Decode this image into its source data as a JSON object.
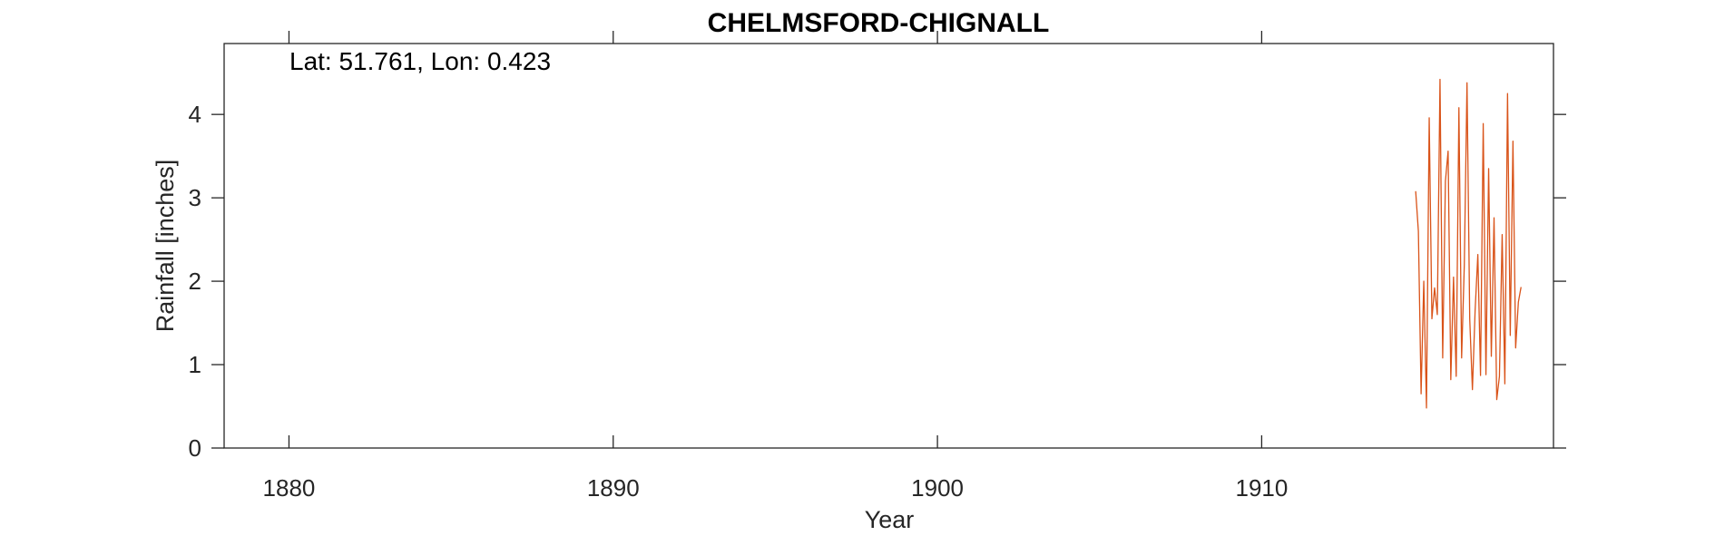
{
  "chart_data": {
    "type": "line",
    "title": "CHELMSFORD-CHIGNALL",
    "xlabel": "Year",
    "ylabel": "Rainfall [inches]",
    "annotation": "Lat: 51.761, Lon: 0.423",
    "xlim": [
      1878,
      1919
    ],
    "ylim": [
      0,
      4.85
    ],
    "x_ticks": [
      1880,
      1890,
      1900,
      1910
    ],
    "y_ticks": [
      0,
      1,
      2,
      3,
      4
    ],
    "grid": false,
    "line_color": "#D95319",
    "series": [
      {
        "x": [
          1914.75,
          1914.833,
          1914.917,
          1915.0,
          1915.083,
          1915.167,
          1915.25,
          1915.333,
          1915.417,
          1915.5,
          1915.583,
          1915.667,
          1915.75,
          1915.833,
          1915.917,
          1916.0,
          1916.083,
          1916.167,
          1916.25,
          1916.333,
          1916.417,
          1916.5,
          1916.583,
          1916.667,
          1916.75,
          1916.833,
          1916.917,
          1917.0,
          1917.083,
          1917.167,
          1917.25,
          1917.333,
          1917.417,
          1917.5,
          1917.583,
          1917.667,
          1917.75,
          1917.833,
          1917.917,
          1918.0,
          1918.083,
          1918.167,
          1918.25,
          1918.333,
          1918.417,
          1918.5
        ],
        "y": [
          3.08,
          2.6,
          0.65,
          2.0,
          0.48,
          3.96,
          1.55,
          1.92,
          1.6,
          4.42,
          1.08,
          3.2,
          3.56,
          0.82,
          2.05,
          0.86,
          4.08,
          1.08,
          2.2,
          4.38,
          1.55,
          0.7,
          1.65,
          2.32,
          0.87,
          3.89,
          0.88,
          3.35,
          1.1,
          2.76,
          0.58,
          0.86,
          2.56,
          0.77,
          4.25,
          1.35,
          3.68,
          1.2,
          1.75,
          1.93,
          null,
          null,
          null,
          null,
          null,
          null
        ]
      }
    ]
  }
}
